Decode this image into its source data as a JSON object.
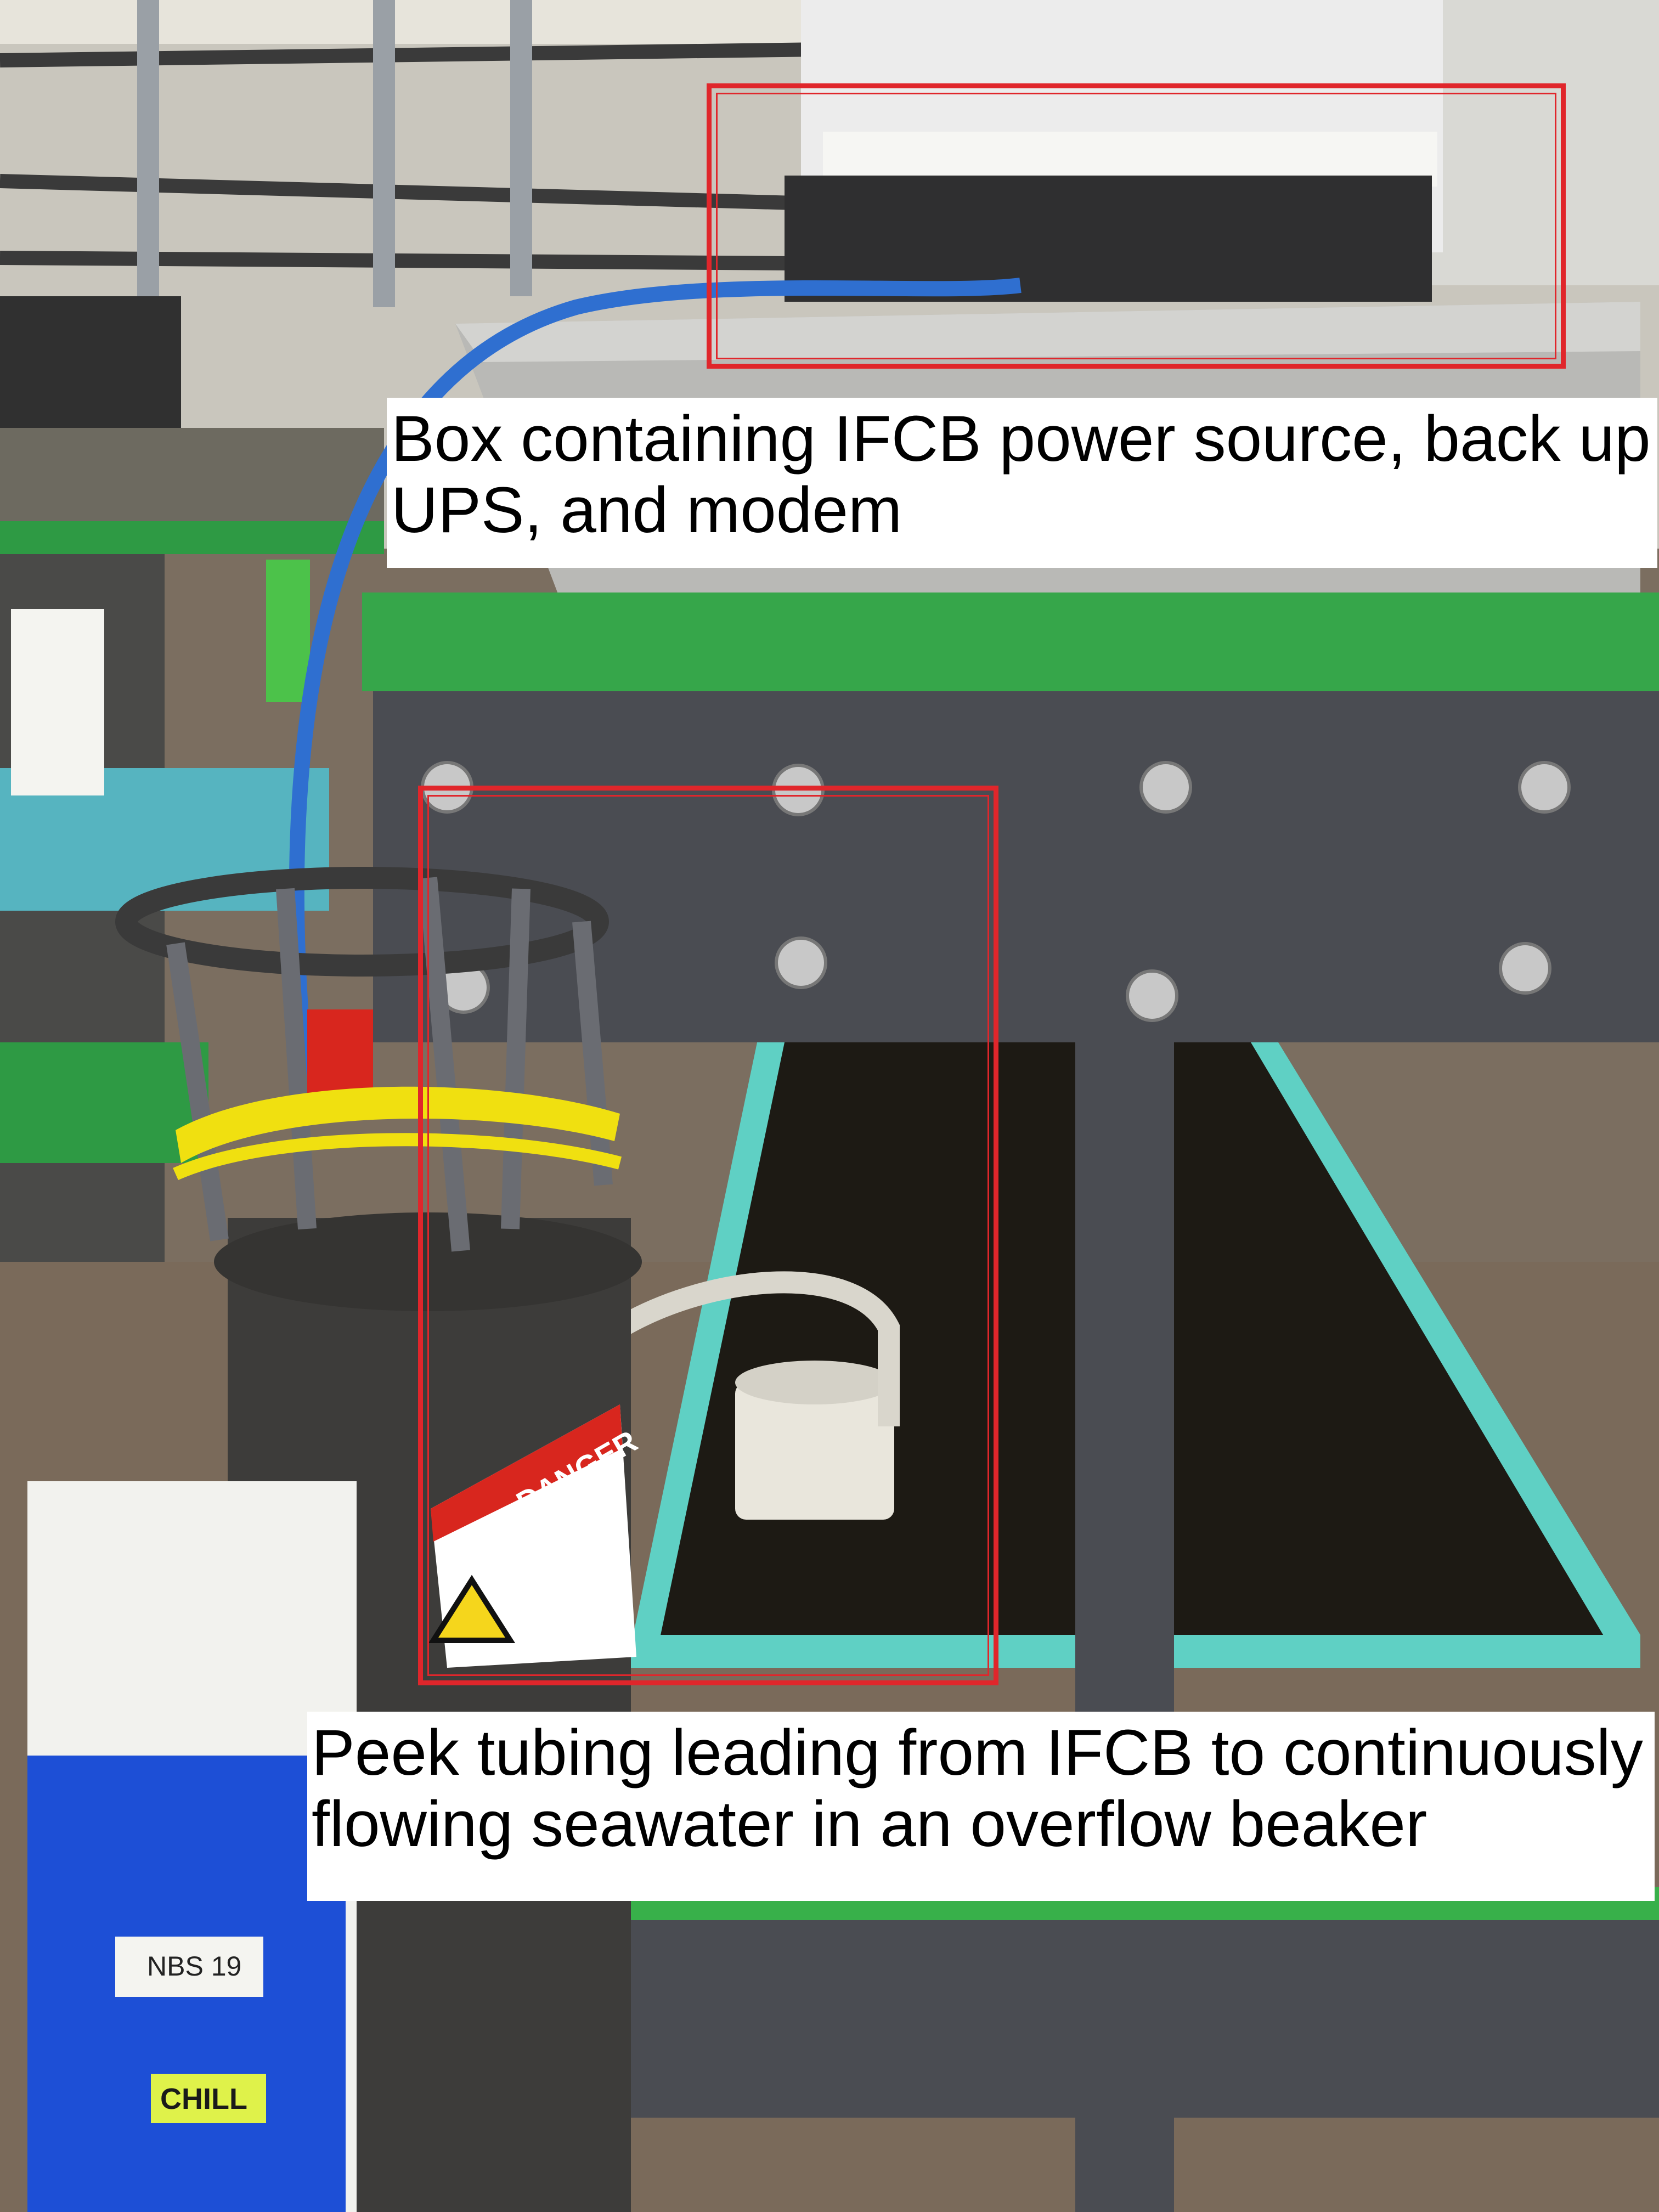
{
  "annotations": {
    "top_caption": "Box containing IFCB power source, back up UPS, and modem",
    "bottom_caption": "Peek tubing leading from IFCB to continuously flowing seawater in an overflow beaker"
  },
  "labels": {
    "danger": "DANGER",
    "cooler_tag": "NBS 19",
    "cooler_sticker": "CHILL"
  },
  "colors": {
    "annotation_box": "#e0262b",
    "green_tray": "#3aa54a",
    "tubing_blue": "#2f6fd0",
    "cooler_blue": "#1d4fd6"
  }
}
